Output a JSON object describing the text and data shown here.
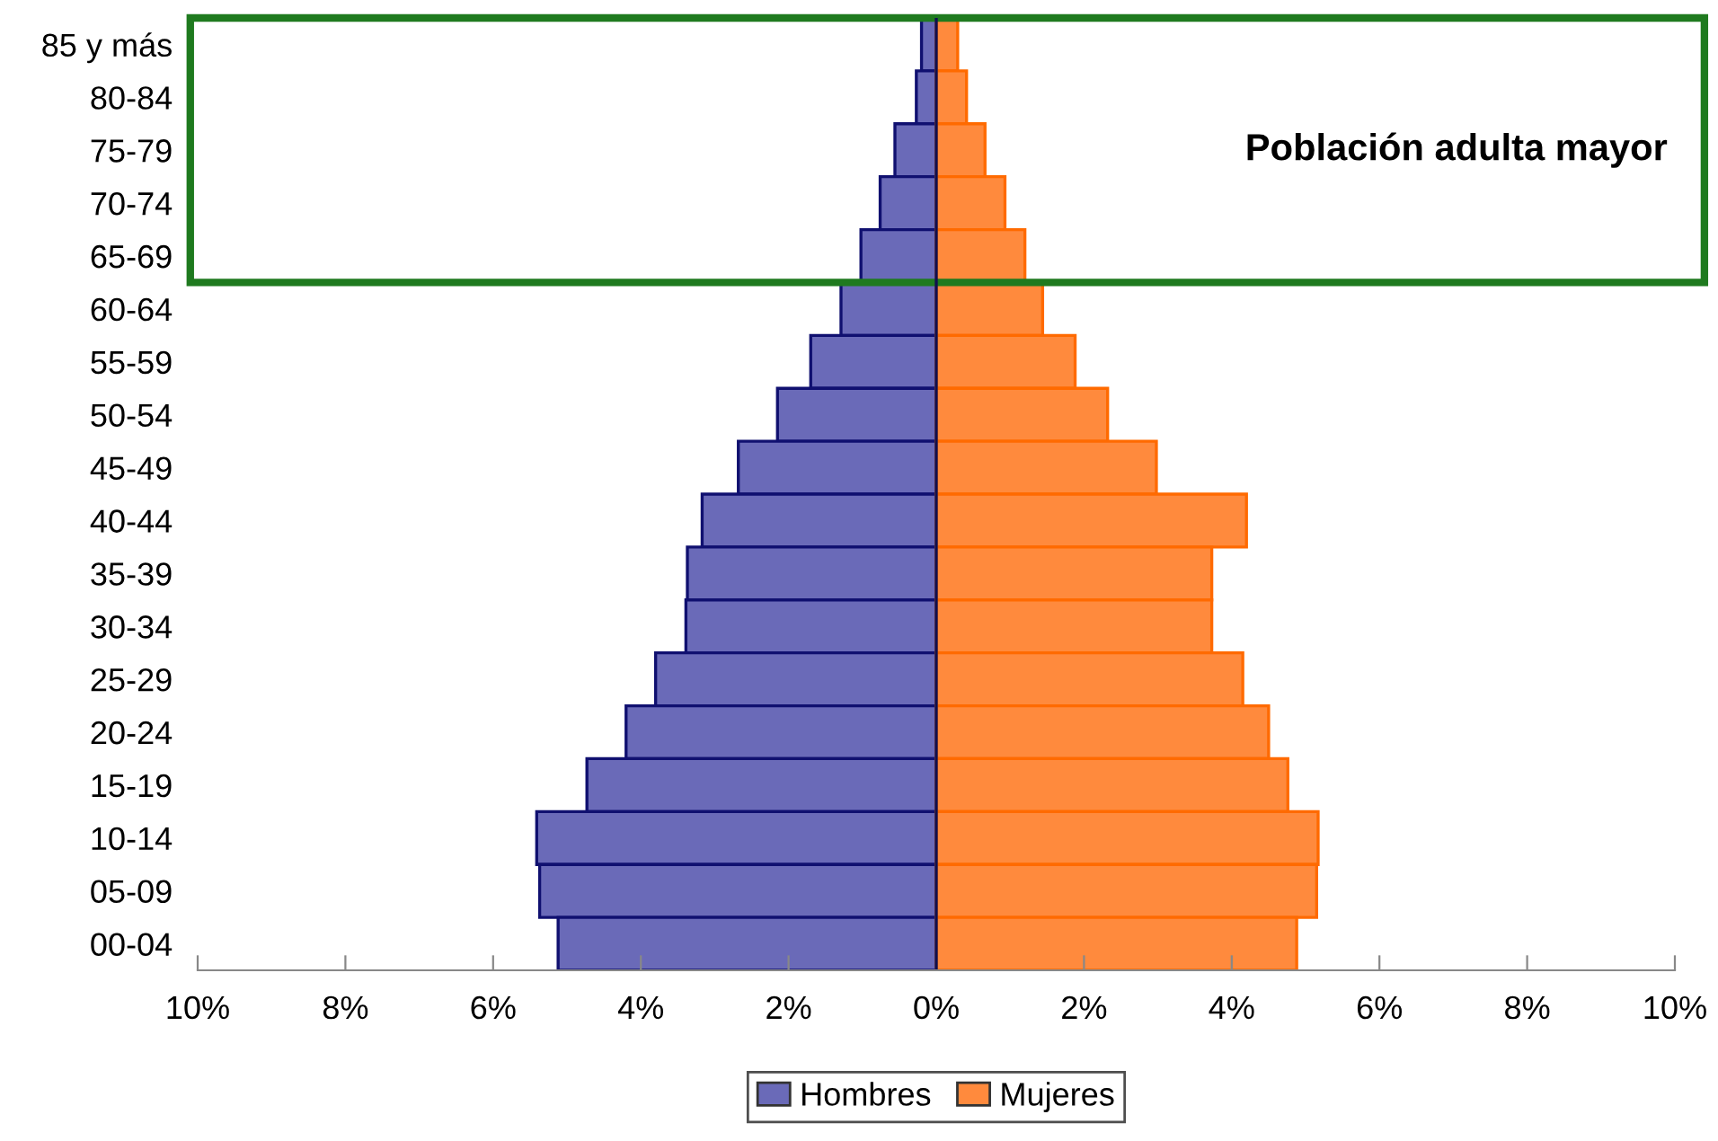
{
  "chart_data": {
    "type": "bar",
    "orientation": "horizontal",
    "stacked": true,
    "categories": [
      "85 y más",
      "80-84",
      "75-79",
      "70-74",
      "65-69",
      "60-64",
      "55-59",
      "50-54",
      "45-49",
      "40-44",
      "35-39",
      "30-34",
      "25-29",
      "20-24",
      "15-19",
      "10-14",
      "05-09",
      "00-04"
    ],
    "series": [
      {
        "name": "Hombres",
        "color": "#6a6ab8",
        "values": [
          -0.2,
          -0.27,
          -0.56,
          -0.76,
          -1.02,
          -1.29,
          -1.7,
          -2.15,
          -2.68,
          -3.17,
          -3.37,
          -3.39,
          -3.8,
          -4.2,
          -4.73,
          -5.41,
          -5.37,
          -5.12
        ]
      },
      {
        "name": "Mujeres",
        "color": "#ff8a3d",
        "values": [
          0.29,
          0.41,
          0.66,
          0.93,
          1.2,
          1.44,
          1.88,
          2.32,
          2.98,
          4.2,
          3.73,
          3.73,
          4.15,
          4.5,
          4.76,
          5.17,
          5.15,
          4.88
        ]
      }
    ],
    "xlim": [
      -10,
      10
    ],
    "xticks": [
      {
        "value": -10,
        "label": "10%"
      },
      {
        "value": -8,
        "label": "8%"
      },
      {
        "value": -6,
        "label": "6%"
      },
      {
        "value": -4,
        "label": "4%"
      },
      {
        "value": -2,
        "label": "2%"
      },
      {
        "value": 0,
        "label": "0%"
      },
      {
        "value": 2,
        "label": "2%"
      },
      {
        "value": 4,
        "label": "4%"
      },
      {
        "value": 6,
        "label": "6%"
      },
      {
        "value": 8,
        "label": "8%"
      },
      {
        "value": 10,
        "label": "10%"
      }
    ],
    "annotations": [
      "Población adulta mayor"
    ],
    "grid": false,
    "legend": "bottom"
  }
}
